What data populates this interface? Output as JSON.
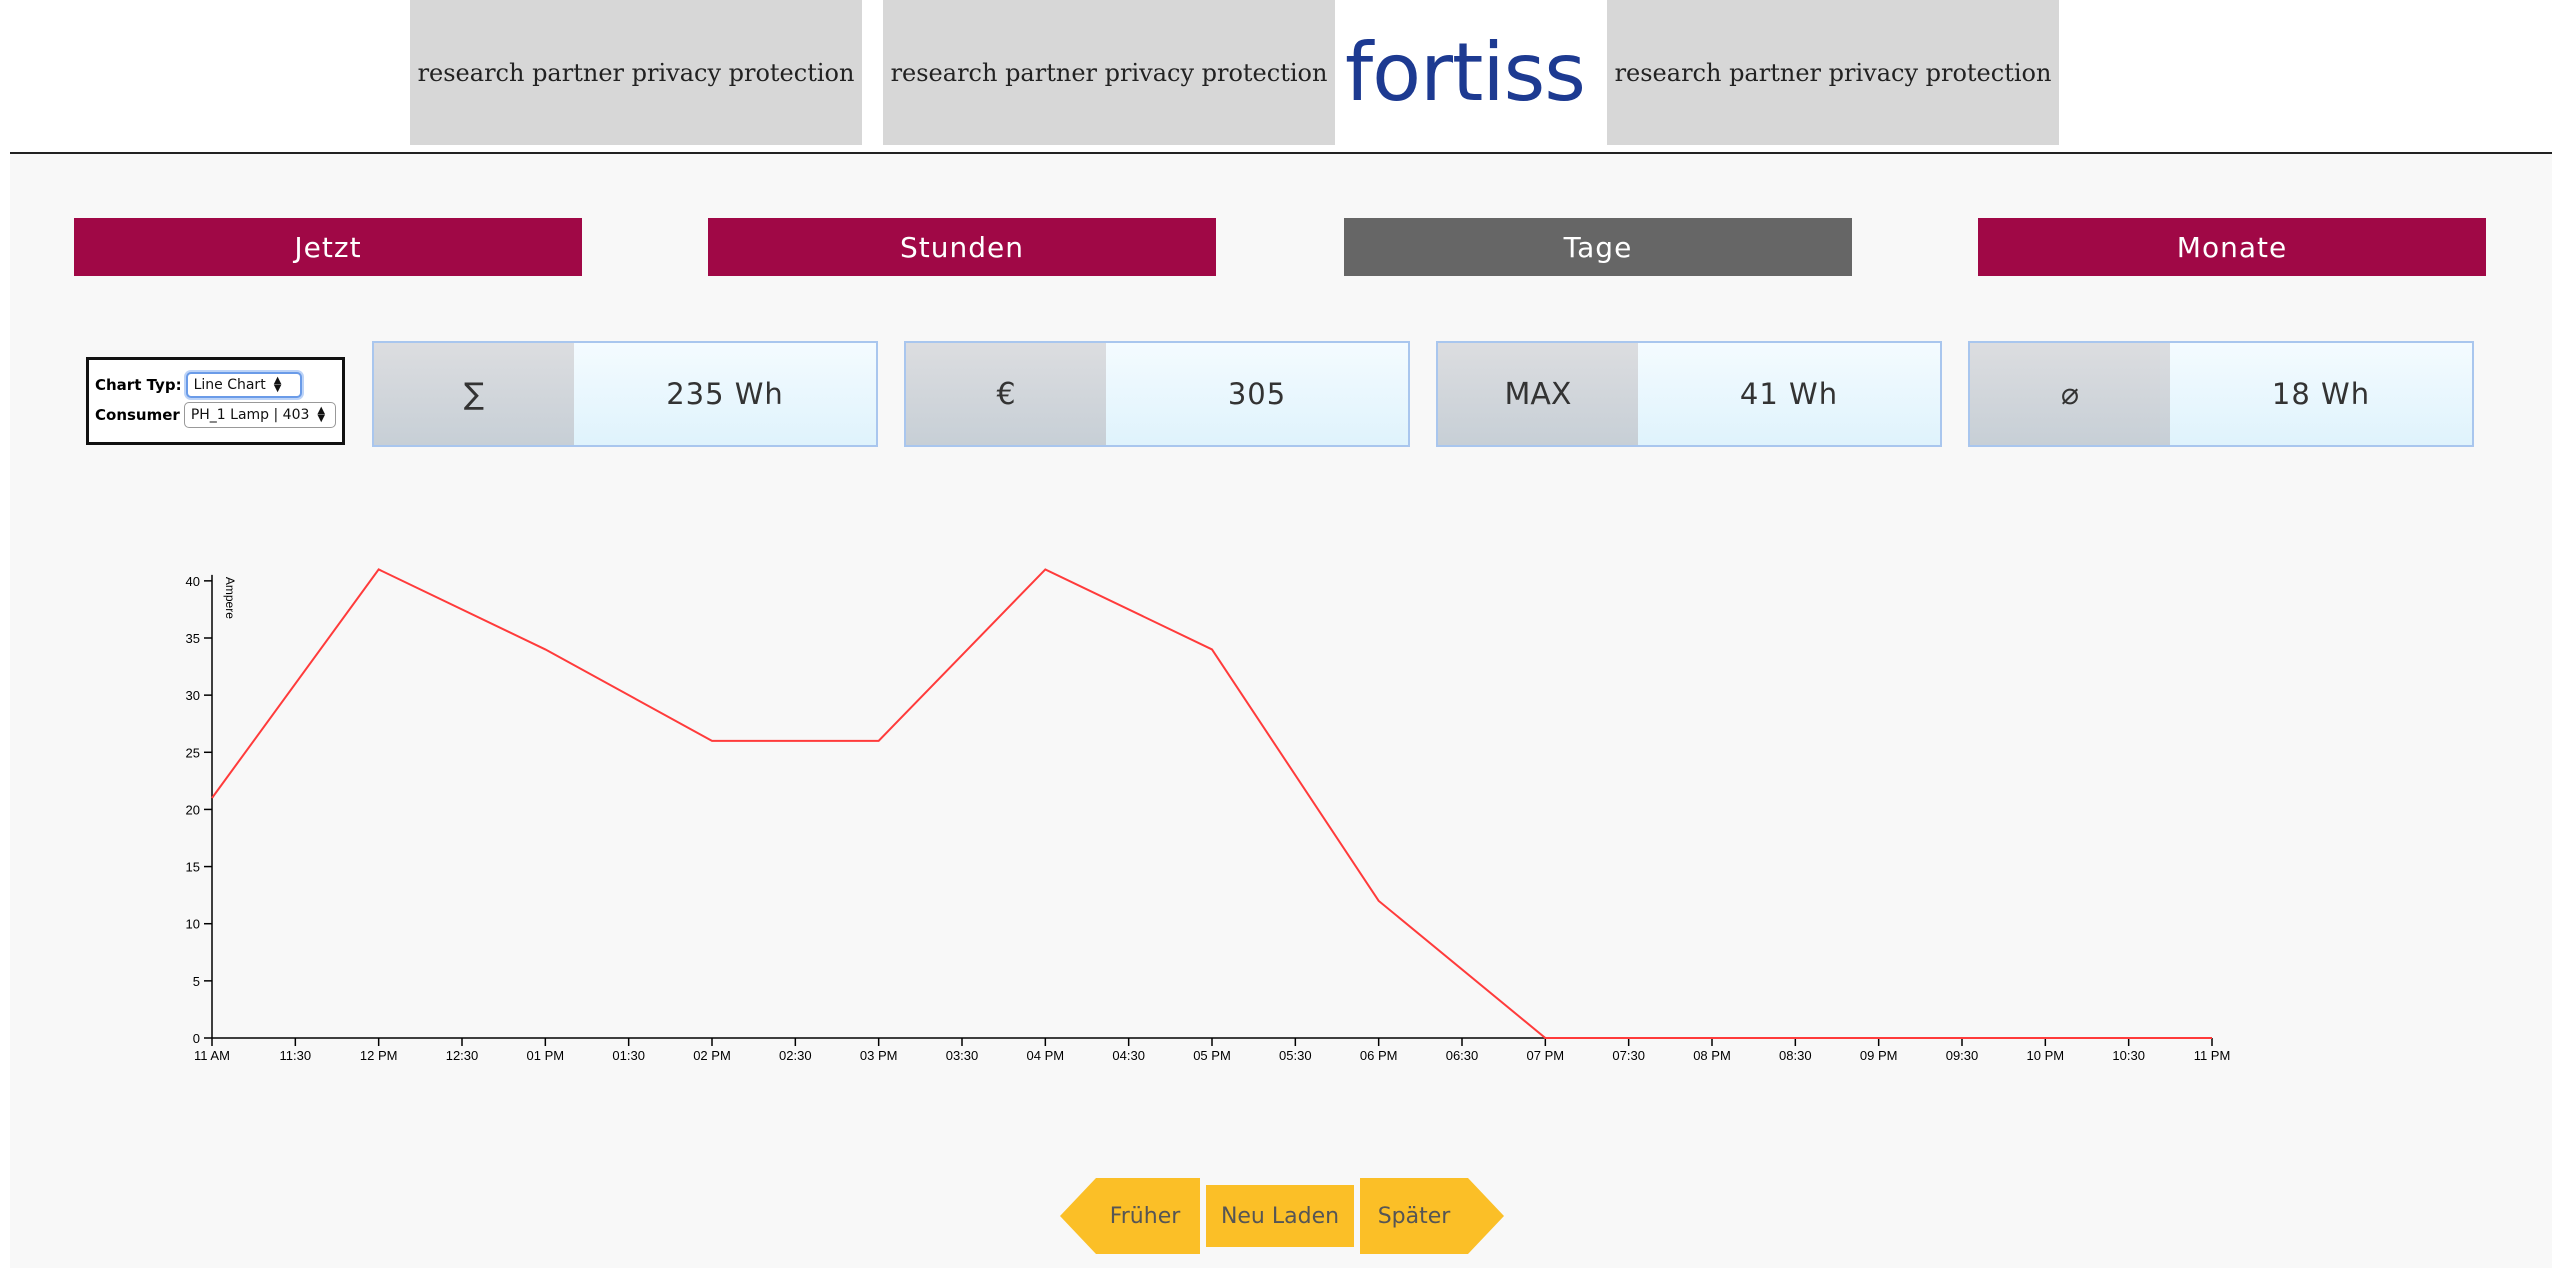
{
  "header": {
    "tagline_1": "research partner privacy protection",
    "tagline_2": "research partner privacy protection",
    "logo_text": "fortiss",
    "tagline_3": "research partner privacy protection"
  },
  "tabs": [
    {
      "label": "Jetzt",
      "active": false
    },
    {
      "label": "Stunden",
      "active": false
    },
    {
      "label": "Tage",
      "active": true
    },
    {
      "label": "Monate",
      "active": false
    }
  ],
  "colors": {
    "tab": "#a00846",
    "tab_active": "#666666",
    "line": "#ff3b3b",
    "nav": "#fbbf27"
  },
  "controls": {
    "chart_type_label": "Chart Typ:",
    "chart_type_value": "Line Chart",
    "consumer_label": "Consumer",
    "consumer_value": "PH_1 Lamp | 403"
  },
  "stats": [
    {
      "key": "∑",
      "value": "235 Wh"
    },
    {
      "key": "€",
      "value": "305"
    },
    {
      "key": "MAX",
      "value": "41 Wh"
    },
    {
      "key": "⌀",
      "value": "18 Wh"
    }
  ],
  "chart_data": {
    "type": "line",
    "ylabel": "Ampere",
    "ylim": [
      0,
      42
    ],
    "yticks": [
      0,
      5,
      10,
      15,
      20,
      25,
      30,
      35,
      40
    ],
    "x_tick_labels": [
      "11 AM",
      "11:30",
      "12 PM",
      "12:30",
      "01 PM",
      "01:30",
      "02 PM",
      "02:30",
      "03 PM",
      "03:30",
      "04 PM",
      "04:30",
      "05 PM",
      "05:30",
      "06 PM",
      "06:30",
      "07 PM",
      "07:30",
      "08 PM",
      "08:30",
      "09 PM",
      "09:30",
      "10 PM",
      "10:30",
      "11 PM"
    ],
    "series": [
      {
        "x": [
          "11 AM",
          "12 PM",
          "01 PM",
          "02 PM",
          "03 PM",
          "04 PM",
          "05 PM",
          "06 PM",
          "07 PM",
          "08 PM",
          "09 PM",
          "10 PM",
          "11 PM"
        ],
        "values": [
          21,
          41,
          34,
          26,
          26,
          41,
          34,
          12,
          0,
          0,
          0,
          0,
          0
        ]
      }
    ],
    "grid": false
  },
  "nav": {
    "earlier": "Früher",
    "reload": "Neu Laden",
    "later": "Später"
  }
}
